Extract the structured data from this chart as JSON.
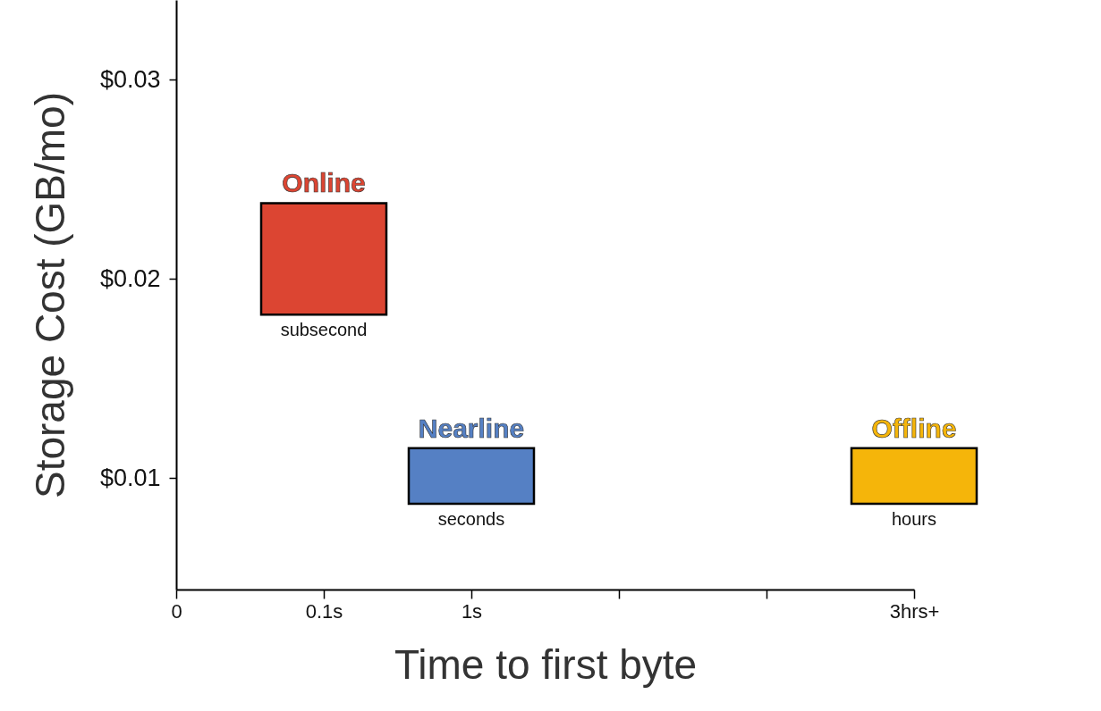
{
  "chart_data": {
    "type": "bar",
    "xlabel": "Time to first byte",
    "ylabel": "Storage Cost (GB/mo)",
    "categories": [
      "0",
      "0.1s",
      "1s",
      null,
      null,
      "3hrs+"
    ],
    "ylim": [
      0.0044,
      0.034
    ],
    "yticks": [
      {
        "value": 0.01,
        "label": "$0.01"
      },
      {
        "value": 0.02,
        "label": "$0.02"
      },
      {
        "value": 0.03,
        "label": "$0.03"
      }
    ],
    "series": [
      {
        "name": "Online",
        "color": "#dc4532",
        "base": [
          null,
          0.0182,
          null,
          null,
          null,
          null
        ],
        "values": [
          null,
          0.0056,
          null,
          null,
          null,
          null
        ]
      },
      {
        "name": "Nearline",
        "color": "#5580c4",
        "base": [
          null,
          null,
          0.0087,
          null,
          null,
          null
        ],
        "values": [
          null,
          null,
          0.0028,
          null,
          null,
          null
        ]
      },
      {
        "name": "Offline",
        "color": "#f5b50a",
        "base": [
          null,
          null,
          null,
          null,
          null,
          0.0087
        ],
        "values": [
          null,
          null,
          null,
          null,
          null,
          0.0028
        ]
      }
    ],
    "annotations": [
      "subsecond",
      "seconds",
      "hours"
    ]
  }
}
